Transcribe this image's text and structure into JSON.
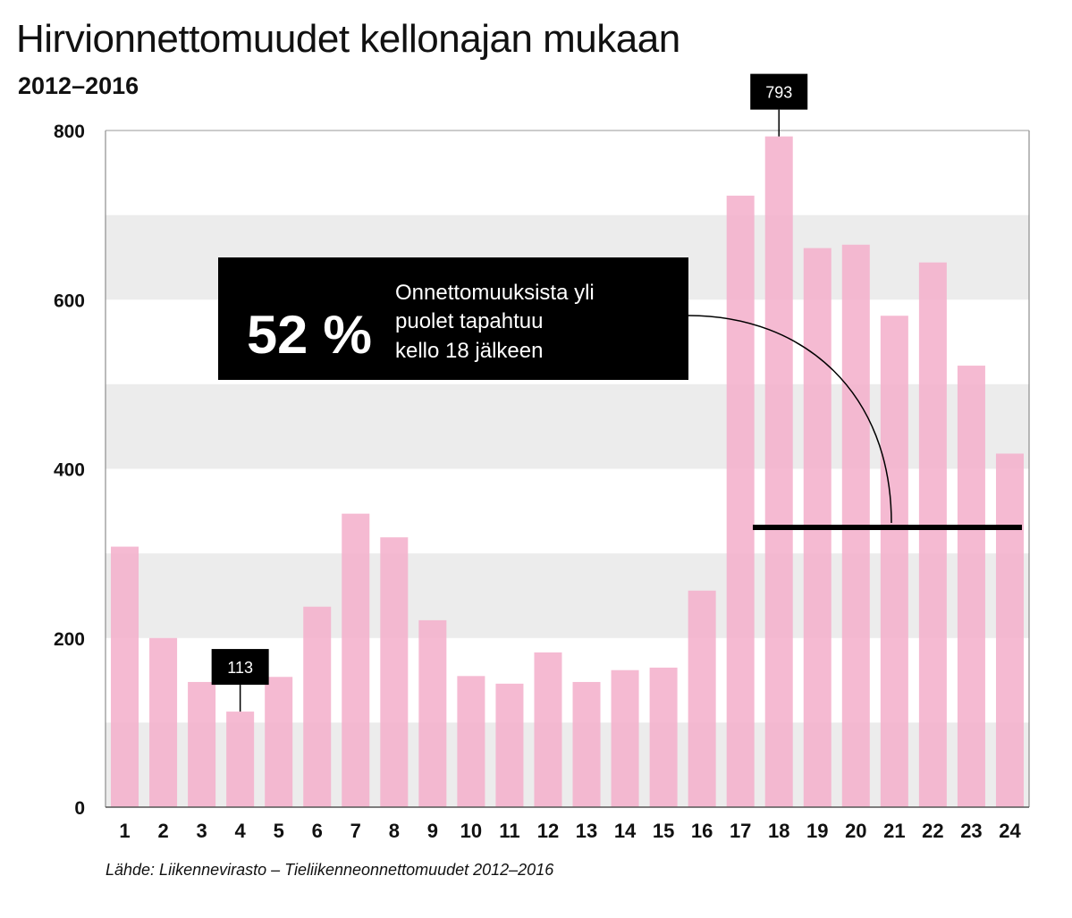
{
  "title": "Hirvionnettomuudet kellonajan mukaan",
  "subtitle": "2012–2016",
  "source": "Lähde: Liikennevirasto – Tieliikenneonnettomuudet 2012–2016",
  "annotation": {
    "percent": "52 %",
    "lines": [
      "Onnettomuuksista yli",
      "puolet tapahtuu",
      "kello 18 jälkeen"
    ]
  },
  "colors": {
    "bar": "#f4b3cd",
    "band": "#ececec",
    "annotation_bg": "#000000"
  },
  "chart_data": {
    "type": "bar",
    "title": "Hirvionnettomuudet kellonajan mukaan",
    "subtitle": "2012–2016",
    "categories": [
      "1",
      "2",
      "3",
      "4",
      "5",
      "6",
      "7",
      "8",
      "9",
      "10",
      "11",
      "12",
      "13",
      "14",
      "15",
      "16",
      "17",
      "18",
      "19",
      "20",
      "21",
      "22",
      "23",
      "24"
    ],
    "values": [
      308,
      200,
      148,
      113,
      154,
      237,
      347,
      319,
      221,
      155,
      146,
      183,
      148,
      162,
      165,
      256,
      723,
      793,
      661,
      665,
      581,
      644,
      522,
      418
    ],
    "labeled_values": [
      {
        "category": "4",
        "value": 113,
        "label": "113"
      },
      {
        "category": "18",
        "value": 793,
        "label": "793"
      }
    ],
    "yticks": [
      0,
      200,
      400,
      600,
      800
    ],
    "ylim": [
      0,
      800
    ],
    "grid": "alternating horizontal bands",
    "legend": "none",
    "highlight_range": {
      "from": "18",
      "to": "24"
    }
  }
}
